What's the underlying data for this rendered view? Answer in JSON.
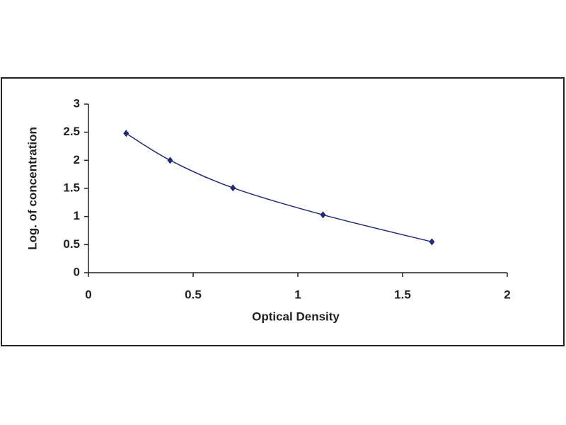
{
  "chart_data": {
    "type": "line",
    "x_label": "Optical Density",
    "y_label": "Log. of concentration",
    "x": [
      0.18,
      0.39,
      0.69,
      1.12,
      1.64
    ],
    "series": [
      {
        "color": "#1f2a78",
        "values": [
          2.48,
          2.0,
          1.51,
          1.03,
          0.55
        ]
      }
    ],
    "xlim": [
      0,
      2
    ],
    "xticks": [
      0,
      0.5,
      1,
      1.5,
      2
    ],
    "ylim": [
      0,
      3
    ],
    "yticks": [
      0,
      0.5,
      1,
      1.5,
      2,
      2.5,
      3
    ]
  }
}
